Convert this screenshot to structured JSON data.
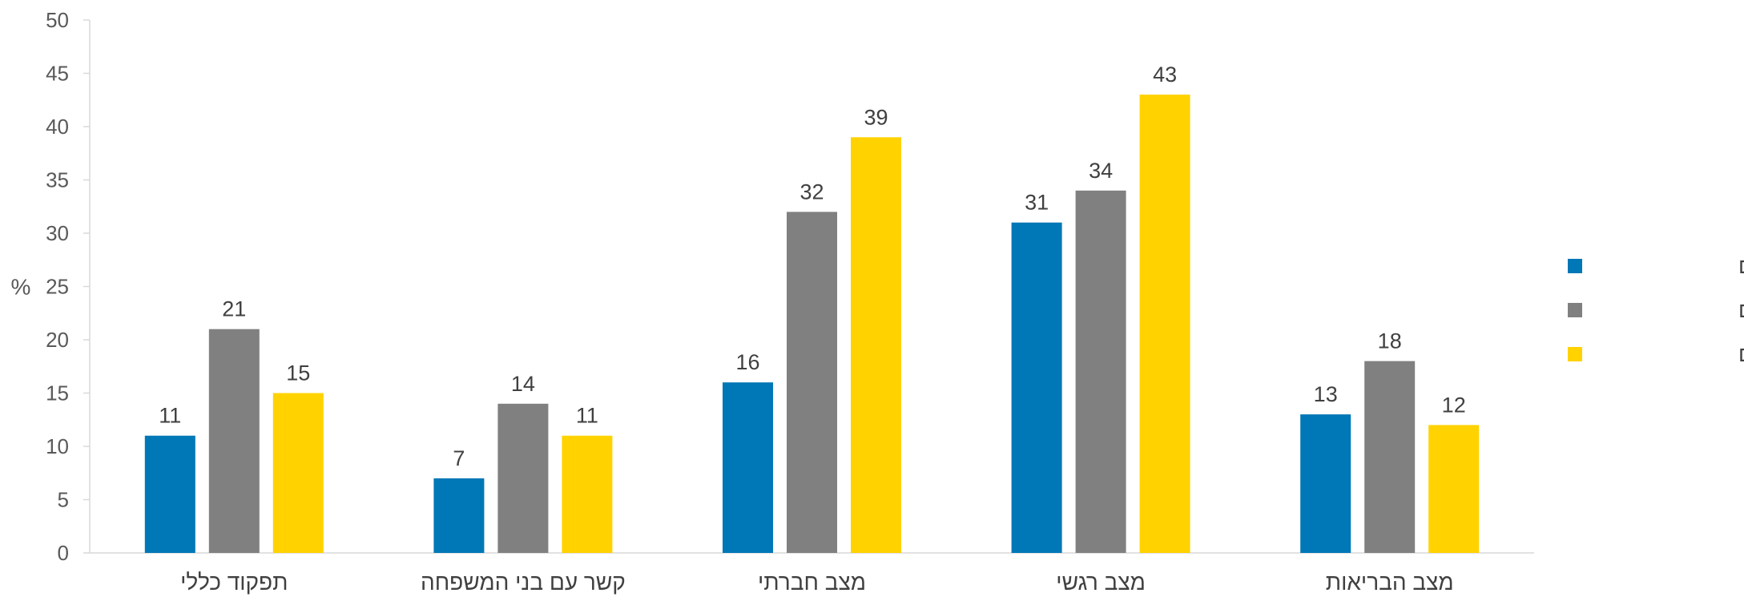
{
  "chart_data": {
    "type": "bar",
    "ylabel": "%",
    "ylim": [
      0,
      50
    ],
    "yticks": [
      0,
      5,
      10,
      15,
      20,
      25,
      30,
      35,
      40,
      45,
      50
    ],
    "grid": false,
    "legend_position": "right",
    "categories": [
      "תפקוד כללי",
      "קשר עם בני המשפחה",
      "מצב חברתי",
      "מצב רגשי",
      "מצב הבריאות"
    ],
    "series": [
      {
        "name": "חרדים",
        "color": "#0077B6",
        "values": [
          11,
          7,
          16,
          31,
          13
        ]
      },
      {
        "name": "ערבים",
        "color": "#808080",
        "values": [
          21,
          14,
          32,
          34,
          18
        ]
      },
      {
        "name": "יהודים לא חרדים",
        "color": "#FFD200",
        "values": [
          15,
          11,
          39,
          43,
          12
        ]
      }
    ]
  }
}
